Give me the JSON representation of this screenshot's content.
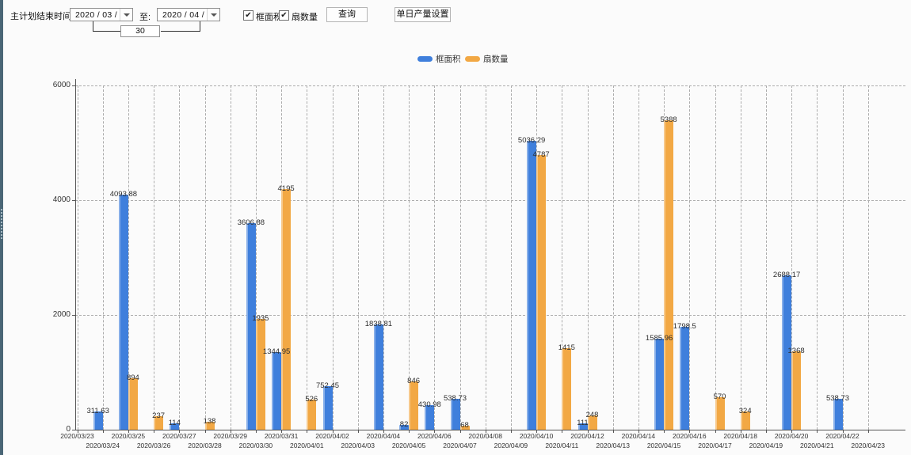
{
  "toolbar": {
    "plan_end_label": "主计划结束时间:",
    "start_date": "2020 / 03 / 24",
    "to_label": "至:",
    "end_date": "2020 / 04 / 23",
    "interval_days": "30",
    "checkboxes": [
      {
        "label": "框面积",
        "checked": true
      },
      {
        "label": "扇数量",
        "checked": true
      }
    ],
    "query_button": "查询",
    "daily_output_button": "单日产量设置",
    "check_icon": "✔"
  },
  "chart_data": {
    "type": "bar",
    "title": "",
    "xlabel": "",
    "ylabel": "",
    "ylim": [
      0,
      6000
    ],
    "yticks": [
      0,
      2000,
      4000,
      6000
    ],
    "grid": true,
    "legend_position": "top",
    "categories": [
      "2020/03/23",
      "2020/03/24",
      "2020/03/25",
      "2020/03/26",
      "2020/03/27",
      "2020/03/28",
      "2020/03/29",
      "2020/03/30",
      "2020/03/31",
      "2020/04/01",
      "2020/04/02",
      "2020/04/03",
      "2020/04/04",
      "2020/04/05",
      "2020/04/06",
      "2020/04/07",
      "2020/04/08",
      "2020/04/09",
      "2020/04/10",
      "2020/04/11",
      "2020/04/12",
      "2020/04/13",
      "2020/04/14",
      "2020/04/15",
      "2020/04/16",
      "2020/04/17",
      "2020/04/18",
      "2020/04/19",
      "2020/04/20",
      "2020/04/21",
      "2020/04/22",
      "2020/04/23"
    ],
    "series": [
      {
        "name": "框面积",
        "color": "#3f7fdc",
        "values": [
          null,
          311.63,
          4093.88,
          null,
          114,
          null,
          null,
          3606.88,
          1344.95,
          null,
          752.45,
          null,
          1838.81,
          82,
          430.98,
          538.73,
          null,
          null,
          5036.29,
          null,
          111,
          null,
          null,
          1585.96,
          1798.5,
          null,
          null,
          null,
          2688.17,
          null,
          538.73,
          null
        ]
      },
      {
        "name": "扇数量",
        "color": "#f2a844",
        "values": [
          null,
          null,
          894,
          237,
          null,
          138,
          null,
          1935,
          4195,
          526,
          null,
          null,
          null,
          846,
          null,
          68,
          null,
          null,
          4787,
          1415,
          248,
          null,
          null,
          5388,
          null,
          570,
          324,
          null,
          1368,
          null,
          null,
          null
        ]
      }
    ]
  }
}
